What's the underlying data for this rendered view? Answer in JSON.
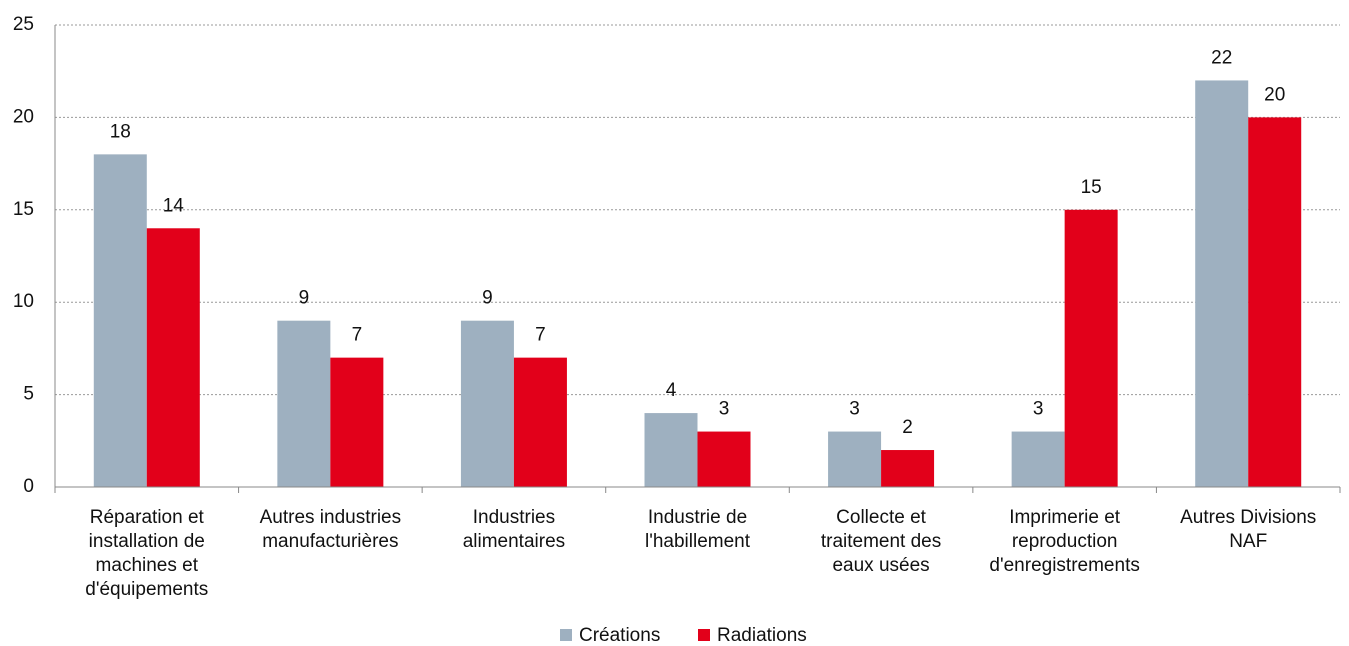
{
  "chart_data": {
    "type": "bar",
    "categories": [
      [
        "Réparation et",
        "installation de",
        "machines et",
        "d'équipements"
      ],
      [
        "Autres industries",
        "manufacturières"
      ],
      [
        "Industries",
        "alimentaires"
      ],
      [
        "Industrie de",
        "l'habillement"
      ],
      [
        "Collecte et",
        "traitement des",
        "eaux usées"
      ],
      [
        "Imprimerie et",
        "reproduction",
        "d'enregistrements"
      ],
      [
        "Autres Divisions",
        "NAF"
      ]
    ],
    "series": [
      {
        "name": "Créations",
        "color": "#9eb0c0",
        "values": [
          18,
          9,
          9,
          4,
          3,
          3,
          22
        ]
      },
      {
        "name": "Radiations",
        "color": "#e2001a",
        "values": [
          14,
          7,
          7,
          3,
          2,
          15,
          20
        ]
      }
    ],
    "ylim": [
      0,
      25
    ],
    "yticks": [
      0,
      5,
      10,
      15,
      20,
      25
    ],
    "grid": true,
    "legend": "bottom"
  }
}
